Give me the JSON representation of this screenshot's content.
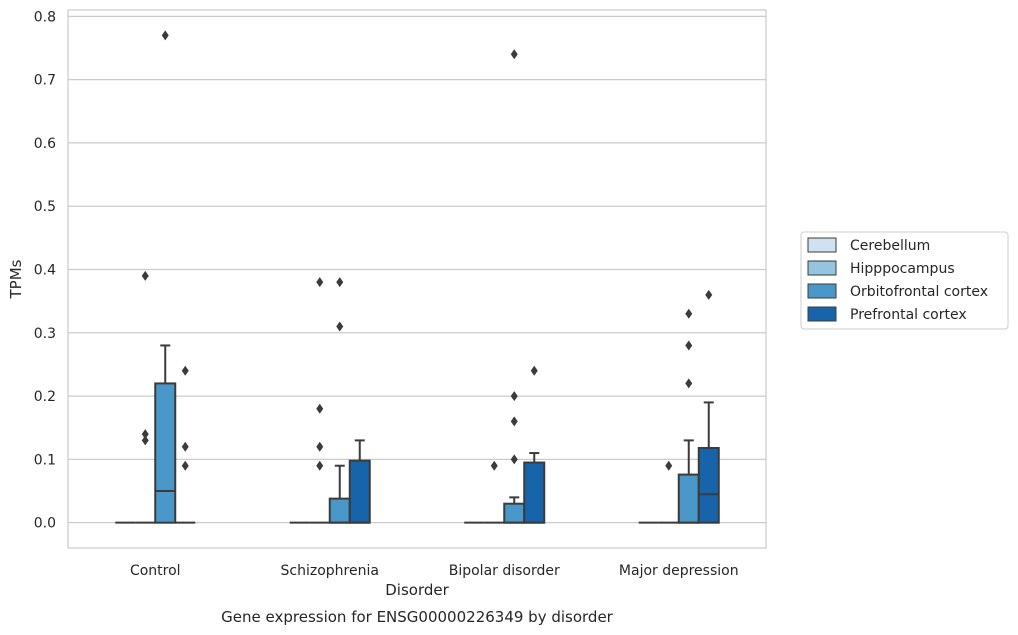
{
  "chart_data": {
    "type": "box",
    "title": "Gene expression for ENSG00000226349 by disorder",
    "xlabel": "Disorder",
    "ylabel": "TPMs",
    "categories": [
      "Control",
      "Schizophrenia",
      "Bipolar disorder",
      "Major depression"
    ],
    "ylim": [
      -0.04,
      0.81
    ],
    "yticks": [
      0.0,
      0.1,
      0.2,
      0.3,
      0.4,
      0.5,
      0.6,
      0.7,
      0.8
    ],
    "ytick_labels": [
      "0.0",
      "0.1",
      "0.2",
      "0.3",
      "0.4",
      "0.5",
      "0.6",
      "0.7",
      "0.8"
    ],
    "grid": true,
    "legend_position": "center-right",
    "series": [
      {
        "name": "Cerebellum",
        "color": "#d0e1f2",
        "boxes": [
          {
            "q1": 0,
            "median": 0,
            "q3": 0,
            "whisker_low": 0,
            "whisker_high": 0,
            "outliers": []
          },
          {
            "q1": 0,
            "median": 0,
            "q3": 0,
            "whisker_low": 0,
            "whisker_high": 0,
            "outliers": []
          },
          {
            "q1": 0,
            "median": 0,
            "q3": 0,
            "whisker_low": 0,
            "whisker_high": 0,
            "outliers": []
          },
          {
            "q1": 0,
            "median": 0,
            "q3": 0,
            "whisker_low": 0,
            "whisker_high": 0,
            "outliers": []
          }
        ]
      },
      {
        "name": "Hipppocampus",
        "color": "#94c4df",
        "boxes": [
          {
            "q1": 0,
            "median": 0,
            "q3": 0,
            "whisker_low": 0,
            "whisker_high": 0,
            "outliers": [
              0.39,
              0.14,
              0.13
            ]
          },
          {
            "q1": 0,
            "median": 0,
            "q3": 0,
            "whisker_low": 0,
            "whisker_high": 0,
            "outliers": [
              0.38,
              0.18,
              0.12,
              0.09
            ]
          },
          {
            "q1": 0,
            "median": 0,
            "q3": 0,
            "whisker_low": 0,
            "whisker_high": 0,
            "outliers": [
              0.09
            ]
          },
          {
            "q1": 0,
            "median": 0,
            "q3": 0,
            "whisker_low": 0,
            "whisker_high": 0,
            "outliers": [
              0.09
            ]
          }
        ]
      },
      {
        "name": "Orbitofrontal cortex",
        "color": "#4a98c9",
        "boxes": [
          {
            "q1": 0,
            "median": 0.05,
            "q3": 0.22,
            "whisker_low": 0,
            "whisker_high": 0.28,
            "outliers": [
              0.77
            ]
          },
          {
            "q1": 0,
            "median": 0,
            "q3": 0.038,
            "whisker_low": 0,
            "whisker_high": 0.09,
            "outliers": [
              0.38,
              0.31
            ]
          },
          {
            "q1": 0,
            "median": 0,
            "q3": 0.03,
            "whisker_low": 0,
            "whisker_high": 0.04,
            "outliers": [
              0.74,
              0.2,
              0.16,
              0.1
            ]
          },
          {
            "q1": 0,
            "median": 0,
            "q3": 0.076,
            "whisker_low": 0,
            "whisker_high": 0.13,
            "outliers": [
              0.33,
              0.28,
              0.22
            ]
          }
        ]
      },
      {
        "name": "Prefrontal cortex",
        "color": "#1764ab",
        "boxes": [
          {
            "q1": 0,
            "median": 0,
            "q3": 0,
            "whisker_low": 0,
            "whisker_high": 0,
            "outliers": [
              0.24,
              0.12,
              0.09
            ]
          },
          {
            "q1": 0,
            "median": 0,
            "q3": 0.098,
            "whisker_low": 0,
            "whisker_high": 0.13,
            "outliers": []
          },
          {
            "q1": 0,
            "median": 0,
            "q3": 0.095,
            "whisker_low": 0,
            "whisker_high": 0.11,
            "outliers": [
              0.24
            ]
          },
          {
            "q1": 0,
            "median": 0.045,
            "q3": 0.118,
            "whisker_low": 0,
            "whisker_high": 0.19,
            "outliers": [
              0.36
            ]
          }
        ]
      }
    ]
  }
}
